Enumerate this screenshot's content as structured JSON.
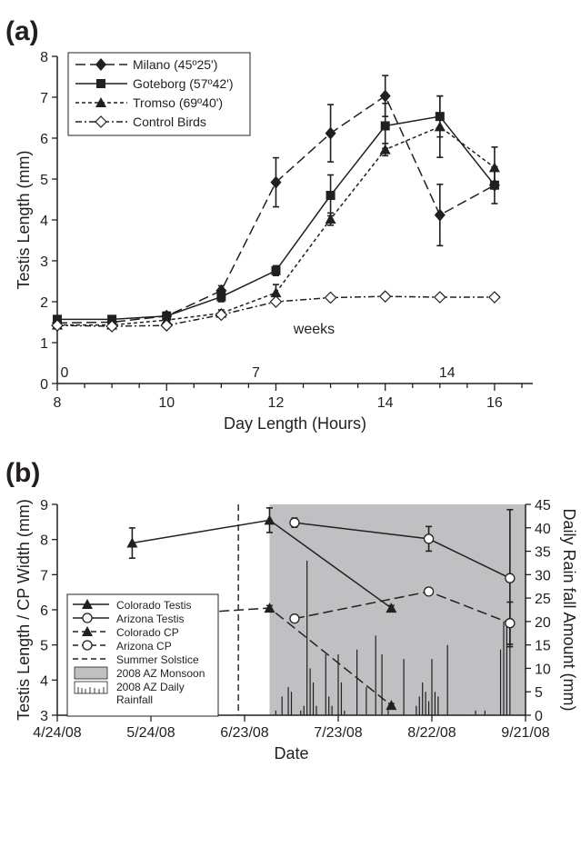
{
  "chart_data": [
    {
      "type": "line",
      "panel_label": "(a)",
      "xlabel": "Day Length (Hours)",
      "ylabel": "Testis Length (mm)",
      "xlim": [
        8,
        16.7
      ],
      "ylim": [
        0,
        8
      ],
      "xticks": [
        "8",
        "10",
        "12",
        "14",
        "16"
      ],
      "yticks": [
        "0",
        "1",
        "2",
        "3",
        "4",
        "5",
        "6",
        "7",
        "8"
      ],
      "week_axis": {
        "label": "weeks",
        "marks": [
          {
            "x": 8,
            "label": "0"
          },
          {
            "x": 11.5,
            "label": "7"
          },
          {
            "x": 15,
            "label": "14"
          }
        ]
      },
      "legend_position": "top-left",
      "series": [
        {
          "name": "Milano (45º25')",
          "marker": "diamond-filled",
          "dash": "long-dash",
          "x": [
            8,
            9,
            10,
            11,
            12,
            13,
            14,
            15,
            16
          ],
          "y": [
            1.48,
            1.5,
            1.65,
            2.27,
            4.92,
            6.12,
            7.03,
            4.12,
            4.85
          ],
          "err": [
            0,
            0,
            0.08,
            0.12,
            0.6,
            0.7,
            0.5,
            0.75,
            0
          ]
        },
        {
          "name": "Goteborg (57º42')",
          "marker": "square-filled",
          "dash": "solid",
          "x": [
            8,
            9,
            10,
            11,
            12,
            13,
            14,
            15,
            16
          ],
          "y": [
            1.57,
            1.57,
            1.65,
            2.12,
            2.76,
            4.6,
            6.3,
            6.53,
            4.85
          ],
          "err": [
            0.08,
            0,
            0.1,
            0.12,
            0.12,
            0.5,
            0.55,
            0.5,
            0.45
          ]
        },
        {
          "name": "Tromso (69º40')",
          "marker": "triangle-filled",
          "dash": "short-dash",
          "x": [
            8,
            9,
            10,
            11,
            12,
            13,
            14,
            15,
            16
          ],
          "y": [
            1.43,
            1.43,
            1.55,
            1.72,
            2.22,
            4.02,
            5.72,
            6.28,
            5.28
          ],
          "err": [
            0,
            0,
            0,
            0.08,
            0.2,
            0.15,
            0.15,
            0.75,
            0.5
          ]
        },
        {
          "name": "Control Birds",
          "marker": "diamond-open",
          "dash": "dash-dot",
          "x": [
            8,
            9,
            10,
            11,
            12,
            13,
            14,
            15,
            16
          ],
          "y": [
            1.42,
            1.4,
            1.42,
            1.68,
            2.0,
            2.1,
            2.13,
            2.11,
            2.11
          ],
          "err": [
            0,
            0,
            0,
            0,
            0,
            0,
            0,
            0,
            0
          ]
        }
      ]
    },
    {
      "type": "line",
      "panel_label": "(b)",
      "xlabel": "Date",
      "ylabel": "Testis Length / CP Width (mm)",
      "ylabel_right": "Daily Rain fall Amount (mm)",
      "xlim": [
        "2008-04-24",
        "2008-09-21"
      ],
      "ylim": [
        3,
        9
      ],
      "ylim_right": [
        0,
        45
      ],
      "xticks": [
        "4/24/08",
        "5/24/08",
        "6/23/08",
        "7/23/08",
        "8/22/08",
        "9/21/08"
      ],
      "yticks": [
        "3",
        "4",
        "5",
        "6",
        "7",
        "8",
        "9"
      ],
      "yticks_right": [
        "0",
        "5",
        "10",
        "15",
        "20",
        "25",
        "30",
        "35",
        "40",
        "45"
      ],
      "summer_solstice": "2008-06-21",
      "monsoon_period": [
        "2008-07-01",
        "2008-09-21"
      ],
      "legend_position": "bottom-left",
      "legend": [
        "Colorado Testis",
        "Arizona Testis",
        "Colorado CP",
        "Arizona CP",
        "Summer Solstice",
        "2008 AZ Monsoon",
        "2008 AZ Daily Rainfall"
      ],
      "series": [
        {
          "name": "Colorado Testis",
          "marker": "triangle-filled",
          "dash": "solid",
          "x": [
            "2008-05-18",
            "2008-07-01",
            "2008-08-09"
          ],
          "y": [
            7.9,
            8.55,
            6.05
          ],
          "err": [
            0.43,
            0.35,
            0.07
          ]
        },
        {
          "name": "Arizona Testis",
          "marker": "circle-open",
          "dash": "solid",
          "x": [
            "2008-07-09",
            "2008-08-21",
            "2008-09-16"
          ],
          "y": [
            8.48,
            8.02,
            6.9
          ],
          "err": [
            0.13,
            0.35,
            1.95
          ]
        },
        {
          "name": "Colorado CP",
          "marker": "triangle-filled",
          "dash": "long-dash",
          "x": [
            "2008-05-18",
            "2008-07-01",
            "2008-08-09"
          ],
          "y": [
            5.8,
            6.05,
            3.28
          ],
          "err": [
            0.1,
            0.07,
            0.05
          ]
        },
        {
          "name": "Arizona CP",
          "marker": "circle-open",
          "dash": "long-dash",
          "x": [
            "2008-07-09",
            "2008-08-21",
            "2008-09-16"
          ],
          "y": [
            5.75,
            6.52,
            5.62
          ],
          "err": [
            0.06,
            0.06,
            0.6
          ]
        }
      ],
      "rainfall_mm": [
        {
          "date": "2008-07-03",
          "v": 1
        },
        {
          "date": "2008-07-05",
          "v": 4
        },
        {
          "date": "2008-07-07",
          "v": 6
        },
        {
          "date": "2008-07-08",
          "v": 5
        },
        {
          "date": "2008-07-11",
          "v": 1
        },
        {
          "date": "2008-07-12",
          "v": 2
        },
        {
          "date": "2008-07-13",
          "v": 33
        },
        {
          "date": "2008-07-14",
          "v": 10
        },
        {
          "date": "2008-07-15",
          "v": 7
        },
        {
          "date": "2008-07-16",
          "v": 2
        },
        {
          "date": "2008-07-19",
          "v": 13
        },
        {
          "date": "2008-07-20",
          "v": 4
        },
        {
          "date": "2008-07-21",
          "v": 2
        },
        {
          "date": "2008-07-23",
          "v": 13
        },
        {
          "date": "2008-07-24",
          "v": 7
        },
        {
          "date": "2008-07-25",
          "v": 1
        },
        {
          "date": "2008-07-29",
          "v": 14
        },
        {
          "date": "2008-08-01",
          "v": 6
        },
        {
          "date": "2008-08-04",
          "v": 17
        },
        {
          "date": "2008-08-06",
          "v": 13
        },
        {
          "date": "2008-08-08",
          "v": 2
        },
        {
          "date": "2008-08-13",
          "v": 12
        },
        {
          "date": "2008-08-17",
          "v": 2
        },
        {
          "date": "2008-08-18",
          "v": 4
        },
        {
          "date": "2008-08-19",
          "v": 7
        },
        {
          "date": "2008-08-20",
          "v": 5
        },
        {
          "date": "2008-08-21",
          "v": 3
        },
        {
          "date": "2008-08-22",
          "v": 12
        },
        {
          "date": "2008-08-23",
          "v": 5
        },
        {
          "date": "2008-08-24",
          "v": 4
        },
        {
          "date": "2008-08-27",
          "v": 15
        },
        {
          "date": "2008-09-05",
          "v": 1
        },
        {
          "date": "2008-09-08",
          "v": 1
        },
        {
          "date": "2008-09-13",
          "v": 14
        },
        {
          "date": "2008-09-14",
          "v": 20
        },
        {
          "date": "2008-09-15",
          "v": 20
        },
        {
          "date": "2008-09-16",
          "v": 15
        }
      ]
    }
  ]
}
